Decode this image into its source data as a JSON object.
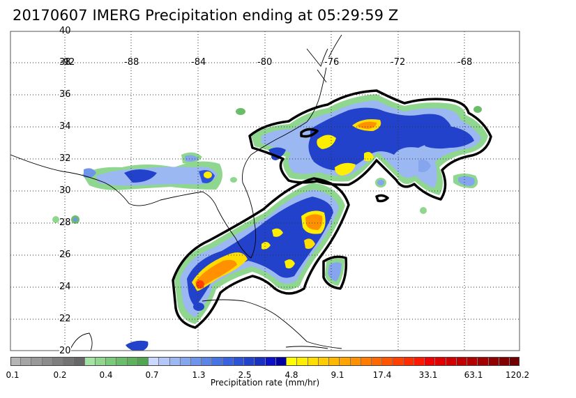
{
  "title": "20170607 IMERG Precipitation ending at 05:29:59 Z",
  "map": {
    "lat_labels": [
      "40",
      "38",
      "36",
      "34",
      "32",
      "30",
      "28",
      "26",
      "24",
      "22",
      "20"
    ],
    "lon_labels": [
      "-92",
      "-88",
      "-84",
      "-80",
      "-76",
      "-72",
      "-68"
    ],
    "lat_range": [
      20,
      40
    ],
    "lon_range": [
      -93,
      -62
    ]
  },
  "colorbar": {
    "title": "Precipitation rate (mm/hr)",
    "tick_labels": [
      "0.1",
      "0.2",
      "0.4",
      "0.7",
      "1.3",
      "2.5",
      "4.8",
      "9.1",
      "17.4",
      "33.1",
      "63.1",
      "120.2"
    ],
    "colors": [
      "#b5b5b5",
      "#a5a5a5",
      "#999999",
      "#8c8c8c",
      "#7f7f7f",
      "#737373",
      "#676767",
      "#a3e3a3",
      "#8fd68f",
      "#7bca7b",
      "#6bbd6b",
      "#5eb25e",
      "#52a652",
      "#c8d8ff",
      "#b3c8f8",
      "#9cb8f2",
      "#85a6ee",
      "#6e95ea",
      "#5b84e6",
      "#4873e2",
      "#3a62de",
      "#2c52d8",
      "#2242cc",
      "#1a30c0",
      "#0c10c8",
      "#0000a0",
      "#ffff00",
      "#ffee00",
      "#ffdd00",
      "#ffcc00",
      "#ffb800",
      "#ffa400",
      "#ff9000",
      "#ff7c00",
      "#ff6800",
      "#ff5400",
      "#ff4000",
      "#ff2c00",
      "#ff1800",
      "#f00000",
      "#e00000",
      "#d00000",
      "#c00000",
      "#b00000",
      "#a00000",
      "#900000",
      "#800000",
      "#700000"
    ]
  }
}
